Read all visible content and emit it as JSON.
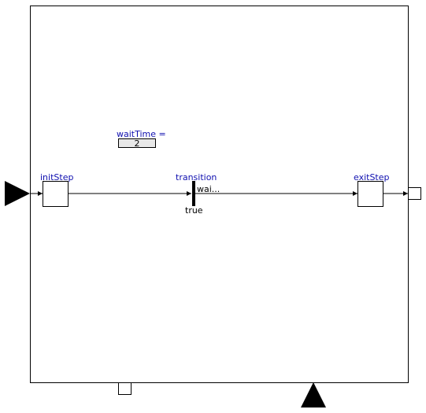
{
  "diagram": {
    "parameter": {
      "name": "waitTime =",
      "value": "2"
    },
    "steps": {
      "init": {
        "label": "initStep"
      },
      "exit": {
        "label": "exitStep"
      }
    },
    "transition": {
      "label": "transition",
      "condition": "true",
      "wait_text": "wai..."
    }
  },
  "colors": {
    "label_blue": "#1010b0",
    "stroke": "#000000",
    "fill_button": "#e8e8e8"
  },
  "icons": {
    "input_port": "filled-triangle-right",
    "output_port": "hollow-square",
    "bottom_ports": [
      "hollow-square",
      "filled-triangle-up"
    ]
  }
}
